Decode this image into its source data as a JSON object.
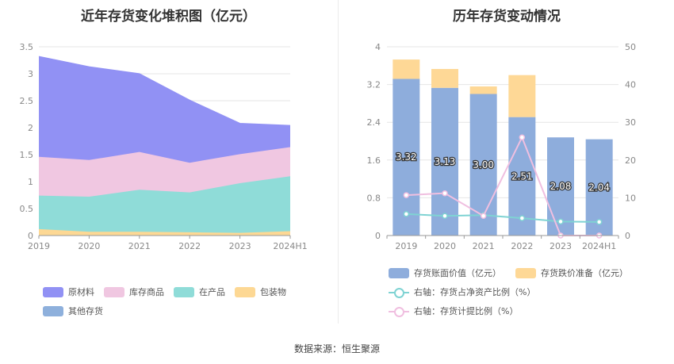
{
  "source": "数据来源：恒生聚源",
  "chart_data": [
    {
      "type": "area",
      "stacked": true,
      "title": "近年存货变化堆积图（亿元）",
      "x": [
        "2019",
        "2020",
        "2021",
        "2022",
        "2023",
        "2024H1"
      ],
      "ylim": [
        0,
        3.5
      ],
      "yticks": [
        "0",
        "0.5",
        "1",
        "1.5",
        "2",
        "2.5",
        "3",
        "3.5"
      ],
      "grid": true,
      "legend_position": "bottom",
      "series": [
        {
          "name": "其他存货",
          "color": "#8eb0dc",
          "values": [
            0.0,
            0.0,
            0.0,
            0.0,
            0.0,
            0.0
          ]
        },
        {
          "name": "包装物",
          "color": "#fdd894",
          "values": [
            0.12,
            0.07,
            0.07,
            0.06,
            0.05,
            0.08
          ]
        },
        {
          "name": "在产品",
          "color": "#8fdcd8",
          "values": [
            0.62,
            0.65,
            0.78,
            0.74,
            0.92,
            1.02
          ]
        },
        {
          "name": "库存商品",
          "color": "#f0c7e1",
          "values": [
            0.72,
            0.68,
            0.7,
            0.55,
            0.54,
            0.54
          ]
        },
        {
          "name": "原材料",
          "color": "#9191f4",
          "values": [
            1.86,
            1.73,
            1.45,
            1.16,
            0.57,
            0.4
          ]
        }
      ],
      "legend_order": [
        "原材料",
        "库存商品",
        "在产品",
        "包装物",
        "其他存货"
      ]
    },
    {
      "type": "bar",
      "stacked": true,
      "title": "历年存货变动情况",
      "categories": [
        "2019",
        "2020",
        "2021",
        "2022",
        "2023",
        "2024H1"
      ],
      "ylim": [
        0,
        4
      ],
      "yticks": [
        "0",
        "0.8",
        "1.6",
        "2.4",
        "3.2",
        "4"
      ],
      "y2lim": [
        0,
        50
      ],
      "y2ticks": [
        "0",
        "10",
        "20",
        "30",
        "40",
        "50"
      ],
      "grid": true,
      "legend_position": "bottom",
      "series": [
        {
          "name": "存货账面价值（亿元）",
          "color": "#8eaddc",
          "axis": "left",
          "kind": "bar",
          "values": [
            3.32,
            3.13,
            3.0,
            2.51,
            2.08,
            2.04
          ],
          "labels": [
            "3.32",
            "3.13",
            "3.00",
            "2.51",
            "2.08",
            "2.04"
          ]
        },
        {
          "name": "存货跌价准备（亿元）",
          "color": "#fed896",
          "axis": "left",
          "kind": "bar",
          "values": [
            0.41,
            0.4,
            0.16,
            0.89,
            0.0,
            0.0
          ]
        },
        {
          "name": "右轴：存货占净资产比例（%）",
          "color": "#7fd3d3",
          "axis": "right",
          "kind": "line",
          "values": [
            5.7,
            5.2,
            5.4,
            4.6,
            3.7,
            3.6
          ]
        },
        {
          "name": "右轴：存货计提比例（%）",
          "color": "#f0bfe0",
          "axis": "right",
          "kind": "line",
          "values": [
            10.7,
            11.2,
            5.2,
            26.0,
            0.0,
            0.0
          ]
        }
      ]
    }
  ]
}
